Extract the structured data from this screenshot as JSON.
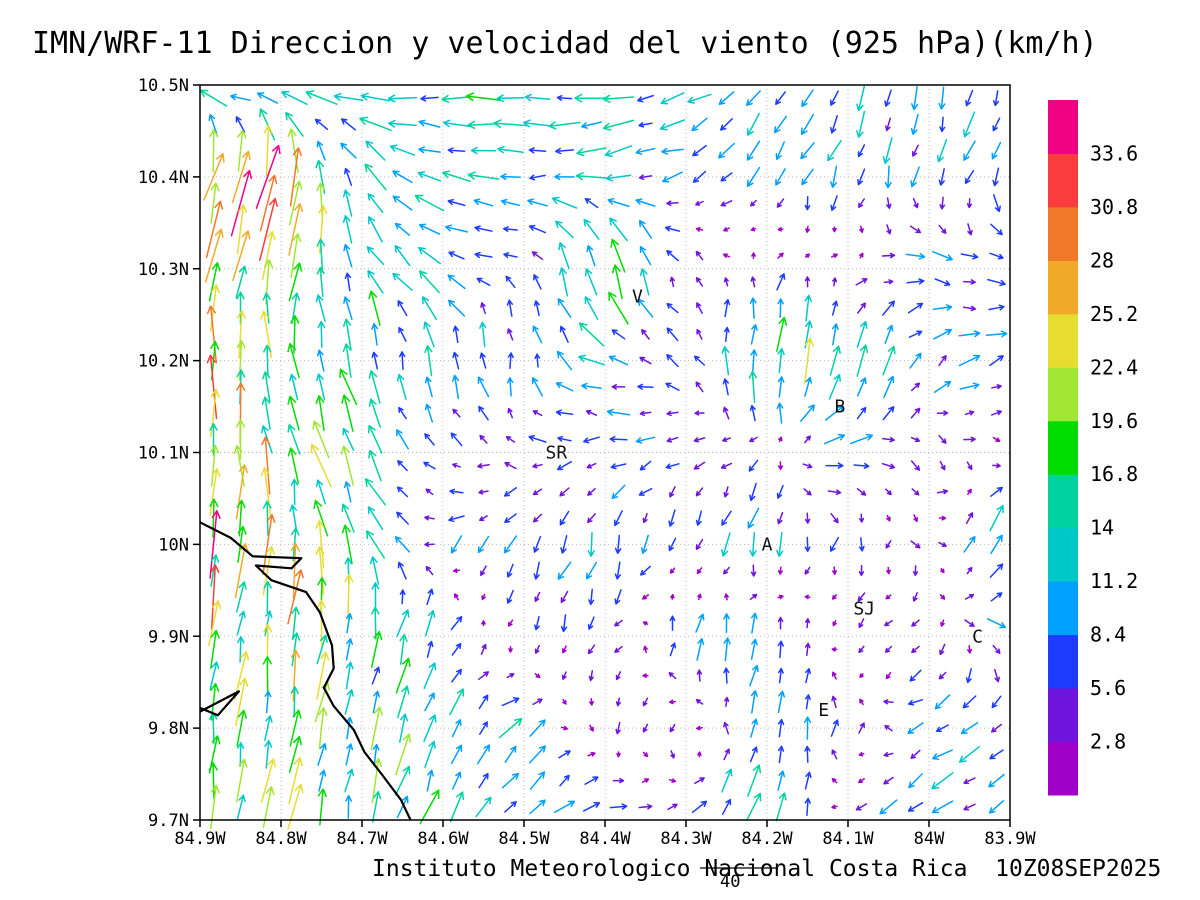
{
  "title": "IMN/WRF-11 Direccion y velocidad del viento (925 hPa)(km/h)",
  "footer": {
    "credit": "Instituto Meteorologico Nacional Costa Rica  10Z08SEP2025",
    "reference_vector_label": "40"
  },
  "chart_data": {
    "type": "vector_field",
    "title": "IMN/WRF-11 Direccion y velocidad del viento (925 hPa)(km/h)",
    "units": "km/h",
    "level_hPa": 925,
    "x_axis": {
      "ticks": [
        "84.9W",
        "84.8W",
        "84.7W",
        "84.6W",
        "84.5W",
        "84.4W",
        "84.3W",
        "84.2W",
        "84.1W",
        "84W",
        "83.9W"
      ],
      "lon_west": 84.9,
      "lon_east": 83.9
    },
    "y_axis": {
      "ticks": [
        "9.7N",
        "9.8N",
        "9.9N",
        "10N",
        "10.1N",
        "10.2N",
        "10.3N",
        "10.4N",
        "10.5N"
      ],
      "lat_south": 9.7,
      "lat_north": 10.5
    },
    "grid_dotted": true,
    "colorbar": {
      "labels": [
        "2.8",
        "5.6",
        "8.4",
        "11.2",
        "14",
        "16.8",
        "19.6",
        "22.4",
        "25.2",
        "28",
        "30.8",
        "33.6"
      ],
      "thresholds": [
        2.8,
        5.6,
        8.4,
        11.2,
        14,
        16.8,
        19.6,
        22.4,
        25.2,
        28,
        30.8,
        33.6
      ],
      "colors": [
        "#a000c8",
        "#6e14dc",
        "#1e3cff",
        "#00a0ff",
        "#00c8c8",
        "#00d2a0",
        "#00dc00",
        "#a0e632",
        "#e6dc32",
        "#f0aa28",
        "#f07828",
        "#fa3c3c",
        "#f00082"
      ]
    },
    "reference_vector": {
      "value": 40,
      "label": "40"
    },
    "coarse_grid": {
      "rows_lat_north_to_south": [
        10.5,
        10.4,
        10.3,
        10.2,
        10.1,
        10.0,
        9.9,
        9.8,
        9.7
      ],
      "cols_lon_west_to_east": [
        84.9,
        84.8,
        84.7,
        84.6,
        84.5,
        84.4,
        84.3,
        84.2,
        84.1,
        84.0,
        83.9
      ],
      "u_kmh": [
        [
          -13,
          -13,
          -12,
          -12,
          -12,
          -11,
          -8,
          -5,
          -3,
          -2,
          -3
        ],
        [
          8,
          6,
          -8,
          -12,
          -12,
          -11,
          -7,
          -4,
          -3,
          -2,
          -3
        ],
        [
          2,
          5,
          -6,
          -10,
          -3,
          -4,
          -2,
          1,
          2,
          8,
          7
        ],
        [
          0,
          -4,
          -3,
          -1,
          0,
          -12,
          -4,
          2,
          3,
          6,
          8
        ],
        [
          2,
          -5,
          -6,
          -4,
          -6,
          -6,
          -5,
          -3,
          11,
          3,
          2
        ],
        [
          3,
          1,
          -5,
          -5,
          -4,
          -2,
          -3,
          -1,
          -2,
          2,
          6
        ],
        [
          2,
          3,
          2,
          5,
          -2,
          -3,
          2,
          3,
          -2,
          -3,
          8
        ],
        [
          1,
          2,
          3,
          5,
          8,
          -2,
          -3,
          2,
          1,
          -7,
          -8
        ],
        [
          1,
          2,
          3,
          6,
          8,
          9,
          8,
          5,
          -5,
          -8,
          -7
        ]
      ],
      "v_kmh": [
        [
          1,
          0,
          2,
          -1,
          0,
          -2,
          -4,
          -7,
          -9,
          -10,
          -9
        ],
        [
          30,
          24,
          10,
          2,
          0,
          -1,
          -3,
          -7,
          -8,
          -8,
          -7
        ],
        [
          23,
          20,
          12,
          4,
          3,
          19,
          3,
          4,
          3,
          -2,
          -3
        ],
        [
          22,
          18,
          14,
          10,
          9,
          4,
          3,
          18,
          16,
          6,
          3
        ],
        [
          28,
          18,
          12,
          3,
          2,
          -2,
          -3,
          -2,
          1,
          -2,
          -3
        ],
        [
          26,
          22,
          14,
          -4,
          -7,
          -8,
          -6,
          -10,
          -4,
          -3,
          16
        ],
        [
          21,
          19,
          15,
          9,
          -6,
          -5,
          10,
          12,
          -3,
          -3,
          -6
        ],
        [
          18,
          17,
          16,
          12,
          6,
          -4,
          -4,
          12,
          5,
          -4,
          -5
        ],
        [
          17,
          16,
          16,
          13,
          8,
          4,
          2,
          18,
          -6,
          -6,
          -5
        ]
      ]
    },
    "fine_grid": {
      "cols": 30,
      "rows": 28,
      "jitter_seed": 20250908,
      "speed_jitter": 0.45
    },
    "stations": [
      {
        "label": "V",
        "lon": 84.36,
        "lat": 10.27
      },
      {
        "label": "B",
        "lon": 84.11,
        "lat": 10.15
      },
      {
        "label": "SR",
        "lon": 84.46,
        "lat": 10.1
      },
      {
        "label": "A",
        "lon": 84.2,
        "lat": 10.0
      },
      {
        "label": "SJ",
        "lon": 84.08,
        "lat": 9.93
      },
      {
        "label": "C",
        "lon": 83.94,
        "lat": 9.9
      },
      {
        "label": "E",
        "lon": 84.13,
        "lat": 9.82
      }
    ],
    "coastline": [
      [
        [
          84.9,
          10.024
        ],
        [
          84.862,
          10.007
        ],
        [
          84.835,
          9.987
        ],
        [
          84.775,
          9.985
        ],
        [
          84.787,
          9.974
        ],
        [
          84.831,
          9.977
        ],
        [
          84.812,
          9.961
        ],
        [
          84.769,
          9.948
        ],
        [
          84.752,
          9.926
        ],
        [
          84.737,
          9.89
        ],
        [
          84.735,
          9.865
        ],
        [
          84.747,
          9.844
        ],
        [
          84.735,
          9.824
        ],
        [
          84.71,
          9.798
        ],
        [
          84.697,
          9.774
        ],
        [
          84.675,
          9.749
        ],
        [
          84.652,
          9.722
        ],
        [
          84.64,
          9.7
        ]
      ],
      [
        [
          84.9,
          9.818
        ],
        [
          84.852,
          9.84
        ],
        [
          84.878,
          9.814
        ],
        [
          84.9,
          9.822
        ]
      ]
    ]
  }
}
